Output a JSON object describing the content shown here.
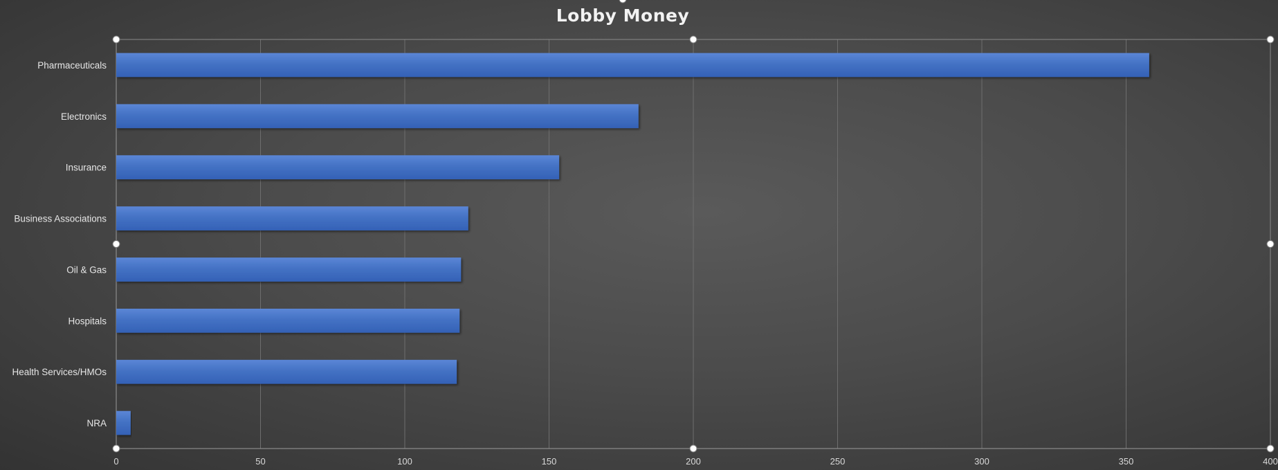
{
  "chart_data": {
    "type": "bar",
    "orientation": "horizontal",
    "title": "Lobby Money",
    "xlabel": "",
    "ylabel": "",
    "categories": [
      "Pharmaceuticals",
      "Electronics",
      "Insurance",
      "Business Associations",
      "Oil & Gas",
      "Hospitals",
      "Health Services/HMOs",
      "NRA"
    ],
    "values": [
      358,
      181,
      153.5,
      122,
      119.5,
      119,
      118,
      5
    ],
    "xlim": [
      0,
      400
    ],
    "xticks": [
      "0",
      "50",
      "100",
      "150",
      "200",
      "250",
      "300",
      "350",
      "400"
    ],
    "grid": true,
    "legend": "none",
    "bar_color": "#4472c4"
  }
}
